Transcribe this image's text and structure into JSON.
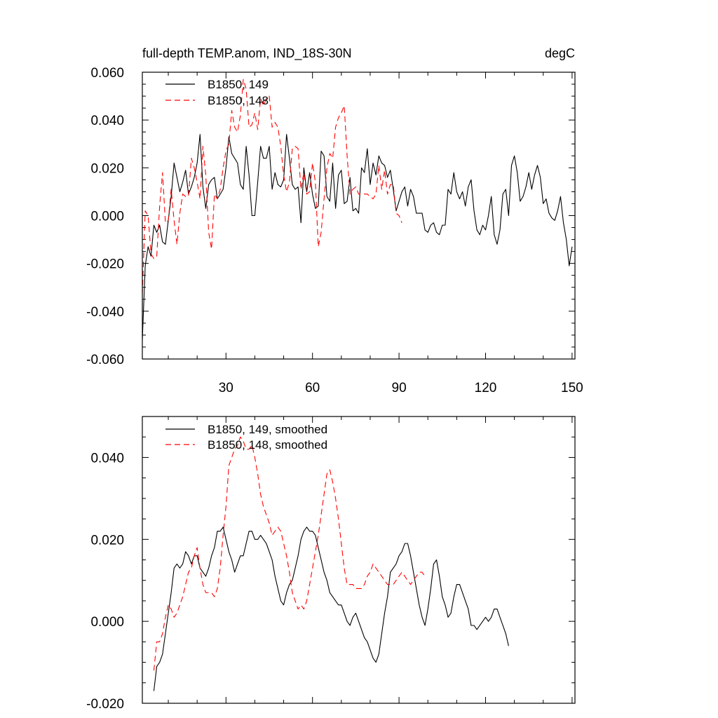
{
  "chart_data": [
    {
      "type": "line",
      "title_left": "full-depth TEMP.anom, IND_18S-30N",
      "title_right": "degC",
      "xlim": [
        1,
        151
      ],
      "ylim": [
        -0.06,
        0.06
      ],
      "xticks": [
        30,
        60,
        90,
        120,
        150
      ],
      "xtick_labels": [
        "30",
        "60",
        "90",
        "120",
        "150"
      ],
      "yticks": [
        -0.06,
        -0.04,
        -0.02,
        0.0,
        0.02,
        0.04,
        0.06
      ],
      "ytick_labels": [
        "-0.060",
        "-0.040",
        "-0.020",
        "0.000",
        "0.020",
        "0.040",
        "0.060"
      ],
      "legend_position": "top-left",
      "series": [
        {
          "name": "B1850, 149",
          "color": "#000000",
          "dash": "solid",
          "x_start": 1,
          "values": [
            -0.052,
            -0.021,
            -0.013,
            -0.017,
            -0.004,
            -0.007,
            -0.004,
            -0.011,
            -0.012,
            -0.002,
            0.008,
            0.022,
            0.016,
            0.01,
            0.014,
            0.019,
            0.009,
            0.012,
            0.016,
            0.022,
            0.034,
            0.012,
            0.003,
            0.013,
            0.015,
            0.016,
            0.007,
            0.009,
            0.011,
            0.02,
            0.033,
            0.026,
            0.024,
            0.022,
            0.013,
            0.011,
            0.029,
            0.017,
            0.0,
            0.0,
            0.014,
            0.029,
            0.024,
            0.024,
            0.029,
            0.011,
            0.018,
            0.013,
            0.012,
            0.015,
            0.034,
            0.024,
            0.013,
            0.011,
            0.012,
            -0.003,
            0.02,
            0.01,
            0.018,
            0.009,
            0.003,
            0.004,
            0.027,
            0.025,
            0.008,
            0.006,
            0.022,
            0.003,
            0.017,
            0.019,
            0.005,
            0.006,
            0.016,
            0.002,
            0.003,
            0.001,
            0.02,
            0.018,
            0.028,
            0.013,
            0.022,
            0.017,
            0.025,
            0.022,
            0.021,
            0.016,
            0.019,
            0.011,
            0.002,
            0.006,
            0.01,
            0.012,
            0.004,
            0.011,
            0.008,
            0.001,
            0.001,
            0.001,
            -0.006,
            -0.007,
            -0.004,
            -0.003,
            -0.007,
            -0.008,
            -0.004,
            -0.004,
            0.011,
            0.009,
            0.018,
            0.01,
            0.007,
            0.01,
            0.004,
            0.012,
            0.015,
            0.002,
            -0.006,
            -0.008,
            -0.004,
            -0.006,
            0.0,
            0.008,
            -0.008,
            -0.012,
            -0.006,
            0.009,
            0.011,
            0.0,
            0.021,
            0.025,
            0.018,
            0.006,
            0.008,
            0.012,
            0.018,
            0.011,
            0.017,
            0.021,
            0.016,
            0.005,
            0.007,
            0.001,
            -0.001,
            -0.002,
            0.002,
            0.008,
            -0.003,
            -0.01,
            -0.021,
            -0.013
          ]
        },
        {
          "name": "B1850, 148",
          "color": "#ff0000",
          "dash": "dashed",
          "x_start": 1,
          "values": [
            -0.033,
            0.002,
            0.0,
            -0.016,
            -0.018,
            -0.017,
            0.004,
            0.018,
            -0.003,
            -0.002,
            0.011,
            -0.002,
            -0.012,
            0.001,
            0.009,
            0.008,
            0.008,
            0.024,
            0.02,
            0.014,
            0.007,
            0.029,
            0.017,
            -0.007,
            -0.014,
            0.009,
            0.007,
            0.011,
            0.02,
            0.027,
            0.03,
            0.044,
            0.037,
            0.035,
            0.042,
            0.057,
            0.053,
            0.037,
            0.038,
            0.043,
            0.036,
            0.049,
            0.046,
            0.049,
            0.05,
            0.037,
            0.039,
            0.037,
            0.029,
            0.017,
            0.01,
            0.014,
            0.028,
            0.029,
            0.028,
            0.011,
            0.018,
            0.009,
            0.01,
            0.022,
            0.014,
            -0.013,
            -0.007,
            0.007,
            0.02,
            0.026,
            0.024,
            0.037,
            0.041,
            0.043,
            0.046,
            0.025,
            0.009,
            0.011,
            0.012,
            0.009,
            0.009,
            0.009,
            0.009,
            0.008,
            0.007,
            0.009,
            0.021,
            0.011,
            0.019,
            0.009,
            0.013,
            0.013,
            0.001,
            0.0,
            -0.003
          ]
        }
      ]
    },
    {
      "type": "line",
      "xlim": [
        1,
        151
      ],
      "ylim": [
        -0.02,
        0.05
      ],
      "xticks": [
        30,
        60,
        90,
        120,
        150
      ],
      "yticks": [
        -0.02,
        0.0,
        0.02,
        0.04
      ],
      "ytick_labels": [
        "-0.020",
        "0.000",
        "0.020",
        "0.040"
      ],
      "legend_position": "top-left",
      "series": [
        {
          "name": "B1850, 149, smoothed",
          "color": "#000000",
          "dash": "solid",
          "x_start": 5,
          "values": [
            -0.017,
            -0.011,
            -0.01,
            -0.008,
            -0.003,
            0.002,
            0.007,
            0.013,
            0.014,
            0.013,
            0.014,
            0.017,
            0.016,
            0.014,
            0.016,
            0.016,
            0.013,
            0.012,
            0.011,
            0.013,
            0.016,
            0.018,
            0.022,
            0.022,
            0.023,
            0.02,
            0.017,
            0.015,
            0.012,
            0.014,
            0.016,
            0.016,
            0.019,
            0.022,
            0.022,
            0.02,
            0.02,
            0.021,
            0.02,
            0.019,
            0.017,
            0.015,
            0.011,
            0.008,
            0.005,
            0.004,
            0.007,
            0.009,
            0.01,
            0.013,
            0.016,
            0.02,
            0.022,
            0.023,
            0.022,
            0.022,
            0.021,
            0.018,
            0.015,
            0.012,
            0.01,
            0.007,
            0.006,
            0.005,
            0.004,
            0.004,
            0.002,
            0.0,
            -0.001,
            0.001,
            0.002,
            0.0,
            -0.002,
            -0.004,
            -0.005,
            -0.007,
            -0.009,
            -0.01,
            -0.008,
            -0.003,
            0.002,
            0.006,
            0.012,
            0.013,
            0.014,
            0.016,
            0.017,
            0.019,
            0.019,
            0.016,
            0.012,
            0.008,
            0.004,
            0.001,
            -0.001,
            0.003,
            0.008,
            0.014,
            0.015,
            0.011,
            0.006,
            0.004,
            0.001,
            0.002,
            0.006,
            0.009,
            0.009,
            0.007,
            0.005,
            0.003,
            -0.001,
            -0.001,
            -0.002,
            -0.001,
            0.0,
            0.001,
            0.0,
            0.001,
            0.003,
            0.003,
            0.001,
            -0.001,
            -0.003,
            -0.006
          ]
        },
        {
          "name": "B1850, 148, smoothed",
          "color": "#ff0000",
          "dash": "dashed",
          "x_start": 5,
          "values": [
            -0.012,
            -0.005,
            -0.005,
            -0.003,
            0.001,
            0.004,
            0.003,
            0.001,
            0.002,
            0.004,
            0.006,
            0.009,
            0.012,
            0.013,
            0.016,
            0.018,
            0.013,
            0.009,
            0.007,
            0.007,
            0.007,
            0.006,
            0.008,
            0.013,
            0.021,
            0.028,
            0.038,
            0.04,
            0.042,
            0.043,
            0.045,
            0.044,
            0.042,
            0.042,
            0.043,
            0.04,
            0.036,
            0.031,
            0.028,
            0.026,
            0.024,
            0.021,
            0.022,
            0.023,
            0.022,
            0.019,
            0.016,
            0.012,
            0.007,
            0.005,
            0.003,
            0.004,
            0.003,
            0.005,
            0.009,
            0.013,
            0.017,
            0.021,
            0.026,
            0.031,
            0.036,
            0.037,
            0.034,
            0.03,
            0.025,
            0.019,
            0.013,
            0.009,
            0.009,
            0.009,
            0.008,
            0.008,
            0.008,
            0.009,
            0.011,
            0.012,
            0.014,
            0.013,
            0.012,
            0.011,
            0.01,
            0.009,
            0.009,
            0.009,
            0.01,
            0.011,
            0.012,
            0.011,
            0.01,
            0.009,
            0.01,
            0.011,
            0.012,
            0.012,
            0.011
          ]
        }
      ]
    }
  ]
}
